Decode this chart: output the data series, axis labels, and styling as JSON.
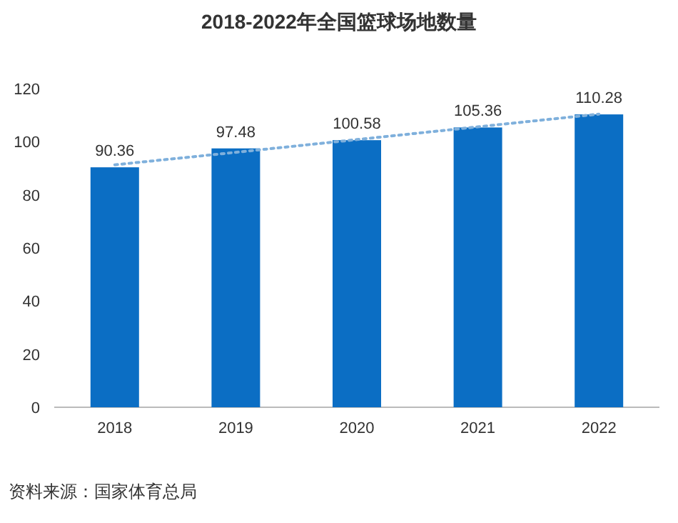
{
  "chart_data": {
    "type": "bar",
    "title": "2018-2022年全国篮球场地数量",
    "categories": [
      "2018",
      "2019",
      "2020",
      "2021",
      "2022"
    ],
    "series": [
      {
        "color": "#0b6ec4",
        "values": [
          90.36,
          97.48,
          100.58,
          105.36,
          110.28
        ],
        "value_labels": [
          "90.36",
          "97.48",
          "100.58",
          "105.36",
          "110.28"
        ]
      },
      {
        "type": "line",
        "color": "#7fb0dc",
        "line_style": "dotted",
        "values": [
          91.3,
          96.0,
          100.8,
          105.6,
          110.4
        ]
      }
    ],
    "ylim": [
      0,
      120
    ],
    "yticks": [
      0,
      20,
      40,
      60,
      80,
      100,
      120
    ],
    "annotations": [
      "资料来源：国家体育总局"
    ]
  }
}
